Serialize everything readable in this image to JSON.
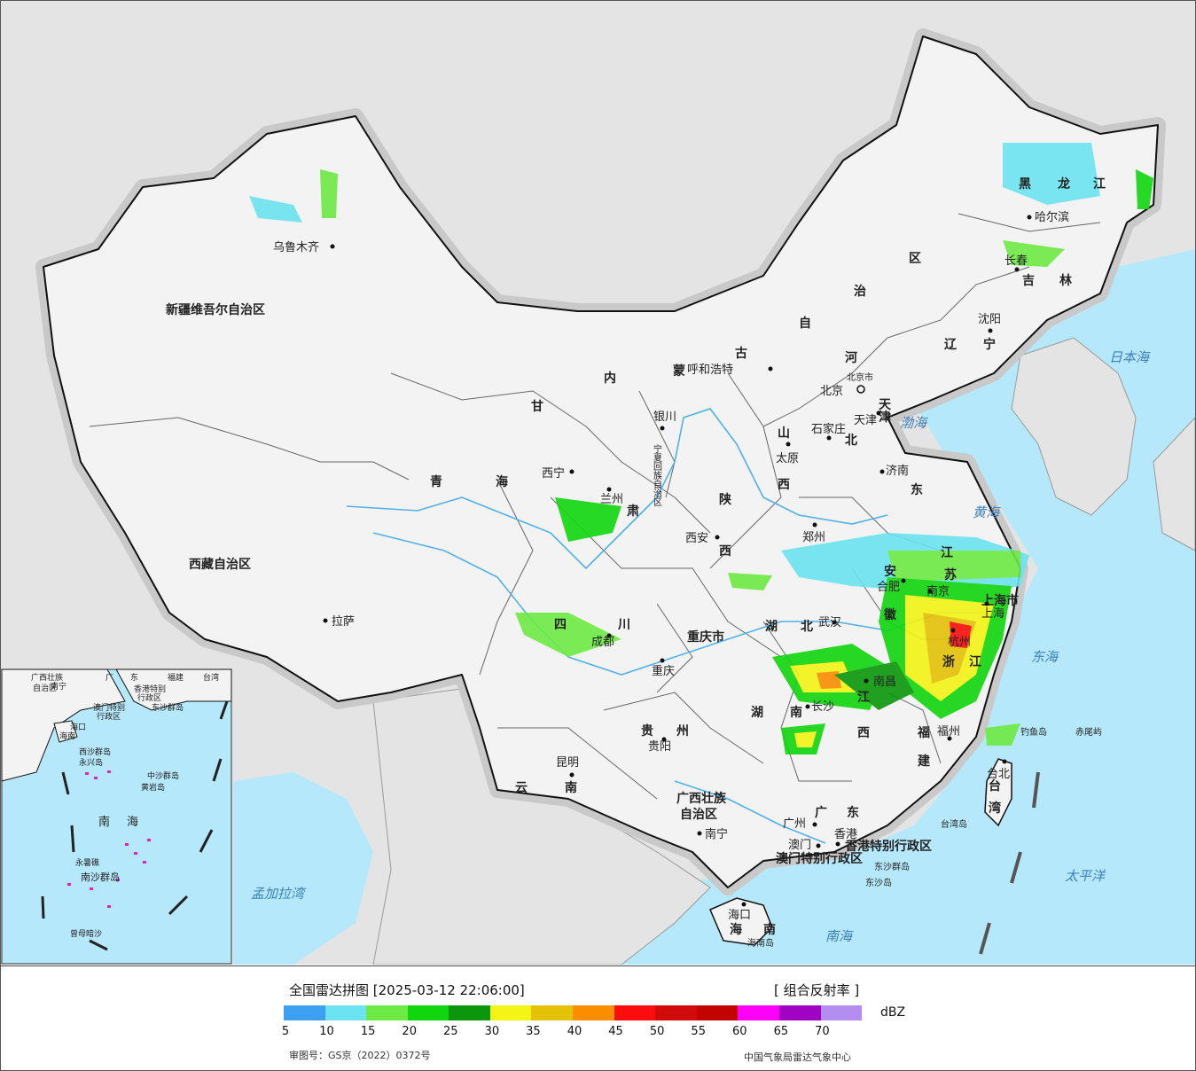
{
  "map": {
    "provinces": [
      "新疆维吾尔自治区",
      "西藏自治区",
      "青",
      "海",
      "甘",
      "肃",
      "内",
      "蒙",
      "古",
      "自",
      "治",
      "区",
      "黑",
      "龙",
      "江",
      "吉",
      "林",
      "辽",
      "宁",
      "河",
      "北",
      "山",
      "西",
      "东",
      "陕",
      "西",
      "四",
      "川",
      "重庆市",
      "湖",
      "北",
      "湖",
      "南",
      "江",
      "苏",
      "安",
      "徽",
      "浙",
      "江",
      "江",
      "西",
      "福",
      "建",
      "贵",
      "州",
      "云",
      "南",
      "广西壮族",
      "自治区",
      "广",
      "东",
      "海",
      "南",
      "台",
      "湾",
      "香港特别行政区",
      "澳门特别行政区",
      "上海市",
      "天",
      "津",
      "北京市",
      "宁夏回族自治区"
    ],
    "cities": [
      "乌鲁木齐",
      "拉萨",
      "西宁",
      "兰州",
      "银川",
      "呼和浩特",
      "北京",
      "天津",
      "石家庄",
      "太原",
      "济南",
      "郑州",
      "西安",
      "成都",
      "重庆",
      "武汉",
      "合肥",
      "南京",
      "上海",
      "杭州",
      "南昌",
      "长沙",
      "福州",
      "台北",
      "贵阳",
      "昆明",
      "南宁",
      "广州",
      "香港",
      "澳门",
      "海口",
      "沈阳",
      "长春",
      "哈尔滨"
    ],
    "seas": [
      "日本海",
      "渤海",
      "黄海",
      "东海",
      "太平洋",
      "南海",
      "孟加拉湾"
    ],
    "islands": [
      "钓鱼岛",
      "赤尾屿",
      "台湾岛",
      "东沙群岛",
      "东沙岛",
      "海南岛"
    ],
    "inset": {
      "labels": [
        "广西壮族",
        "自治区",
        "广",
        "东",
        "福建",
        "台湾",
        "南宁",
        "香港特别",
        "行政区",
        "澳门特别",
        "行政区",
        "东沙群岛",
        "海口",
        "海南",
        "西沙群岛",
        "永兴岛",
        "中沙群岛",
        "黄岩岛",
        "南",
        "海",
        "永暑礁",
        "南沙群岛",
        "曾母暗沙"
      ]
    },
    "colors": {
      "land": "#f3f3f3",
      "sea": "#b5e8fa",
      "outside": "#e4e4e4",
      "border": "#111111",
      "river": "#4fb1e6"
    }
  },
  "legend": {
    "title": "全国雷达拼图 [2025-03-12 22:06:00]",
    "product": "[ 组合反射率 ]",
    "unit": "dBZ",
    "colors": [
      "#3ea0f0",
      "#6be3f0",
      "#6dea43",
      "#10d60e",
      "#0b960b",
      "#f4f416",
      "#e4c207",
      "#fb8d00",
      "#fa0d0c",
      "#d10a0b",
      "#c20300",
      "#fe01f8",
      "#a004c0",
      "#b38ef0"
    ],
    "ticks": [
      "5",
      "10",
      "15",
      "20",
      "25",
      "30",
      "35",
      "40",
      "45",
      "50",
      "55",
      "60",
      "65",
      "70"
    ],
    "approval": "审图号：GS京（2022）0372号",
    "source": "中国气象局雷达气象中心"
  }
}
